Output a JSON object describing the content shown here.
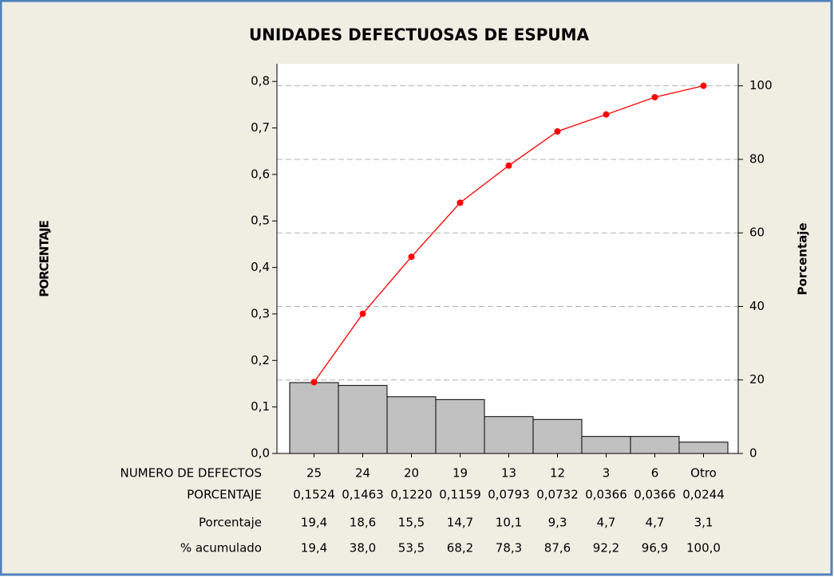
{
  "chart_data": {
    "type": "pareto",
    "title": "UNIDADES DEFECTUOSAS DE ESPUMA",
    "ylabel": "PORCENTAJE",
    "y2label": "Porcentaje",
    "categories_label": "NUMERO DE DEFECTOS",
    "categories": [
      "25",
      "24",
      "20",
      "19",
      "13",
      "12",
      "3",
      "6",
      "Otro"
    ],
    "series": [
      {
        "name": "PORCENTAJE",
        "color": "#c0c0c0",
        "values": [
          0.1524,
          0.1463,
          0.122,
          0.1159,
          0.0793,
          0.0732,
          0.0366,
          0.0366,
          0.0244
        ],
        "value_labels": [
          "0,1524",
          "0,1463",
          "0,1220",
          "0,1159",
          "0,0793",
          "0,0732",
          "0,0366",
          "0,0366",
          "0,0244"
        ]
      },
      {
        "name": "Porcentaje",
        "values": [
          19.4,
          18.6,
          15.5,
          14.7,
          10.1,
          9.3,
          4.7,
          4.7,
          3.1
        ],
        "value_labels": [
          "19,4",
          "18,6",
          "15,5",
          "14,7",
          "10,1",
          "9,3",
          "4,7",
          "4,7",
          "3,1"
        ]
      },
      {
        "name": "% acumulado",
        "color": "#ff0000",
        "axis": "y2",
        "values": [
          19.4,
          38.0,
          53.5,
          68.2,
          78.3,
          87.6,
          92.2,
          96.9,
          100.0
        ],
        "value_labels": [
          "19,4",
          "38,0",
          "53,5",
          "68,2",
          "78,3",
          "87,6",
          "92,2",
          "96,9",
          "100,0"
        ]
      }
    ],
    "ylim": [
      0,
      0.838
    ],
    "yticks": [
      {
        "value": 0,
        "label": "0,0"
      },
      {
        "value": 0.1,
        "label": "0,1"
      },
      {
        "value": 0.2,
        "label": "0,2"
      },
      {
        "value": 0.3,
        "label": "0,3"
      },
      {
        "value": 0.4,
        "label": "0,4"
      },
      {
        "value": 0.5,
        "label": "0,5"
      },
      {
        "value": 0.6,
        "label": "0,6"
      },
      {
        "value": 0.7,
        "label": "0,7"
      },
      {
        "value": 0.8,
        "label": "0,8"
      }
    ],
    "y2lim": [
      0,
      106
    ],
    "y2ticks": [
      0,
      20,
      40,
      60,
      80,
      100
    ],
    "grid": "y2"
  }
}
